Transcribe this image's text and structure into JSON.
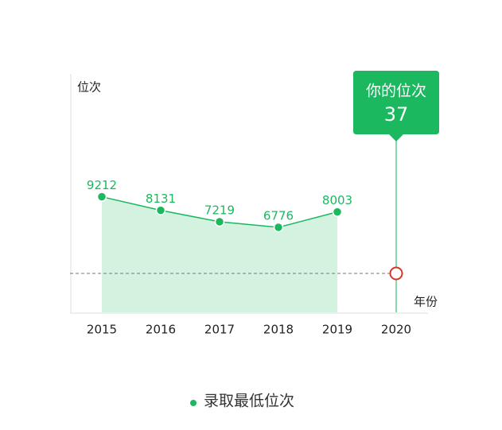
{
  "chart_data": {
    "type": "area",
    "y_label": "位次",
    "x_label": "年份",
    "categories": [
      "2015",
      "2016",
      "2017",
      "2018",
      "2019",
      "2020"
    ],
    "series": [
      {
        "name": "录取最低位次",
        "color": "#1bb860",
        "values": [
          9212,
          8131,
          7219,
          6776,
          8003,
          null
        ]
      }
    ],
    "ylim": [
      0,
      19000
    ],
    "annotation": {
      "category": "2020",
      "label": "你的位次",
      "value": 37
    }
  }
}
